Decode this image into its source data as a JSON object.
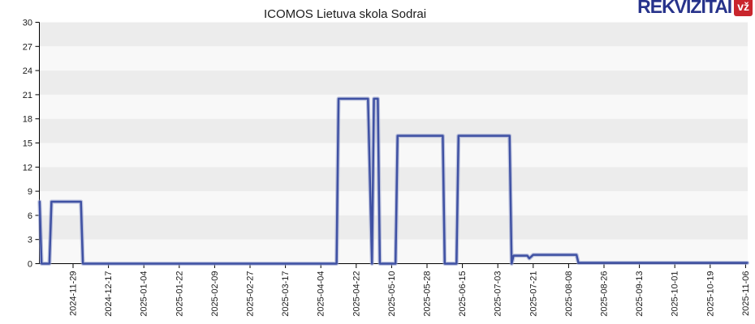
{
  "header": {
    "logo_text": "REKVIZITAI",
    "logo_badge": "vž"
  },
  "colors": {
    "logo_blue": "#27338b",
    "badge_red": "#c9252c",
    "line_core": "#3f51a3",
    "line_halo": "#97a2cf",
    "band_dark": "#ececec",
    "band_light": "#f8f8f8",
    "axis": "#000000",
    "tick_label": "#1a1a1a"
  },
  "chart_data": {
    "type": "line",
    "title": "ICOMOS Lietuva skola Sodrai",
    "xlabel": "",
    "ylabel": "",
    "legend": "none",
    "grid": "horizontal striped bands every 3 units, alternating gray/white",
    "ylim": [
      0,
      30
    ],
    "y_ticks": [
      0,
      3,
      6,
      9,
      12,
      15,
      18,
      21,
      24,
      27,
      30
    ],
    "x_tick_labels": [
      "2024-11-29",
      "2024-12-17",
      "2025-01-04",
      "2025-01-22",
      "2025-02-09",
      "2025-02-27",
      "2025-03-17",
      "2025-04-04",
      "2025-04-22",
      "2025-05-10",
      "2025-05-28",
      "2025-06-15",
      "2025-07-03",
      "2025-07-21",
      "2025-08-08",
      "2025-08-26",
      "2025-09-13",
      "2025-10-01",
      "2025-10-19",
      "2025-11-06"
    ],
    "points": [
      [
        "2024-11-12",
        7.7
      ],
      [
        "2024-11-13",
        0
      ],
      [
        "2024-11-17",
        0
      ],
      [
        "2024-11-18",
        7.7
      ],
      [
        "2024-12-03",
        7.7
      ],
      [
        "2024-12-04",
        0
      ],
      [
        "2025-04-12",
        0
      ],
      [
        "2025-04-13",
        20.5
      ],
      [
        "2025-04-28",
        20.5
      ],
      [
        "2025-04-30",
        0
      ],
      [
        "2025-05-01",
        20.5
      ],
      [
        "2025-05-03",
        20.5
      ],
      [
        "2025-05-04",
        0
      ],
      [
        "2025-05-12",
        0
      ],
      [
        "2025-05-13",
        15.9
      ],
      [
        "2025-06-05",
        15.9
      ],
      [
        "2025-06-06",
        0
      ],
      [
        "2025-06-12",
        0
      ],
      [
        "2025-06-13",
        15.9
      ],
      [
        "2025-07-09",
        15.9
      ],
      [
        "2025-07-10",
        0
      ],
      [
        "2025-07-11",
        1.0
      ],
      [
        "2025-07-18",
        1.0
      ],
      [
        "2025-07-19",
        0.65
      ],
      [
        "2025-07-21",
        1.1
      ],
      [
        "2025-08-12",
        1.1
      ],
      [
        "2025-08-13",
        0.1
      ],
      [
        "2025-11-07",
        0.1
      ]
    ]
  }
}
